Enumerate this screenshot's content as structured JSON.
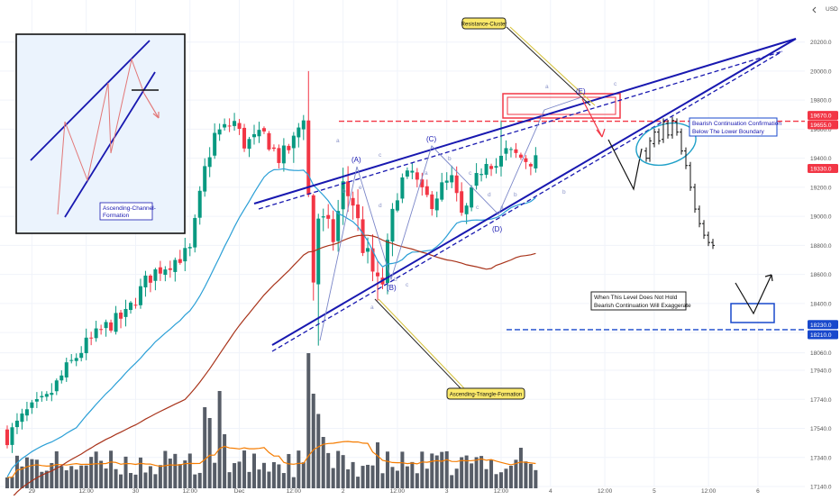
{
  "chart_data": {
    "type": "candlestick",
    "title": "",
    "xlabel": "",
    "ylabel": "",
    "currency": "USD",
    "ylim": [
      17140,
      20440
    ],
    "y_ticks": [
      20200,
      20000,
      19800,
      19600,
      19400,
      19200,
      19000,
      18800,
      18600,
      18400,
      18200,
      18000,
      17800,
      17600,
      17400,
      17200
    ],
    "y_tick_labels": [
      "20200.0",
      "20000.0",
      "19800.0",
      "19600.0",
      "19400.0",
      "19200.0",
      "19000.0",
      "18800.0",
      "18600.0",
      "18400.0",
      "18200.0",
      "18060.0",
      "17940.0",
      "17740.0",
      "17540.0",
      "17340.0",
      "17140.0"
    ],
    "y_tick_label_values": [
      20200,
      20000,
      19800,
      19600,
      19400,
      19200,
      19000,
      18800,
      18600,
      18400,
      18200,
      18060,
      17940,
      17740,
      17540,
      17340,
      17140
    ],
    "x_ticks": [
      {
        "label": "29",
        "bar": 5
      },
      {
        "label": "12:00",
        "bar": 16
      },
      {
        "label": "30",
        "bar": 26
      },
      {
        "label": "12:00",
        "bar": 37
      },
      {
        "label": "Dec",
        "bar": 47
      },
      {
        "label": "12:00",
        "bar": 58
      },
      {
        "label": "2",
        "bar": 68
      },
      {
        "label": "12:00",
        "bar": 79
      },
      {
        "label": "3",
        "bar": 89
      },
      {
        "label": "12:00",
        "bar": 100
      },
      {
        "label": "4",
        "bar": 110
      },
      {
        "label": "12:00",
        "bar": 121
      },
      {
        "label": "5",
        "bar": 131
      },
      {
        "label": "12:00",
        "bar": 142
      },
      {
        "label": "6",
        "bar": 152
      }
    ],
    "last_bar": 107,
    "price_badges": [
      {
        "label": "19670.0",
        "value": 19670,
        "color": "#f23645"
      },
      {
        "label": "19655.0",
        "value": 19655,
        "color": "#f23645"
      },
      {
        "label": "19330.0",
        "value": 19330,
        "color": "#f23645"
      },
      {
        "label": "18230.0",
        "value": 18230,
        "color": "#1848cc"
      },
      {
        "label": "18210.0",
        "value": 18210,
        "color": "#1848cc"
      }
    ],
    "colors": {
      "up": "#089981",
      "down": "#f23645",
      "pattern": "#1818b0",
      "resistance": "#f23645",
      "support": "#1848cc",
      "ma_fast": "#2a9fd6",
      "ma_slow": "#a8331a",
      "ma_volume": "#f57c00",
      "volume": "#454b56",
      "projection": "#111111"
    }
  },
  "labels": {
    "resistance_cluster": "Resistance-Cluster",
    "ascending_triangle": "Ascending-Triangle-Formation",
    "bearish_confirmation_1": "Bearish Continuation Confirmation",
    "bearish_confirmation_2": "Below The Lower Boundary",
    "level_hold_1": "When This Level Does Not Hold",
    "level_hold_2": "Bearish Continuation Will Exaggerate",
    "channel_1": "Ascending-Channel-",
    "channel_2": "Formation",
    "wave_A": "(A)",
    "wave_B": "(B)",
    "wave_C": "(C)",
    "wave_D": "(D)",
    "wave_E": "(E)"
  },
  "volume": {
    "max": 100
  }
}
